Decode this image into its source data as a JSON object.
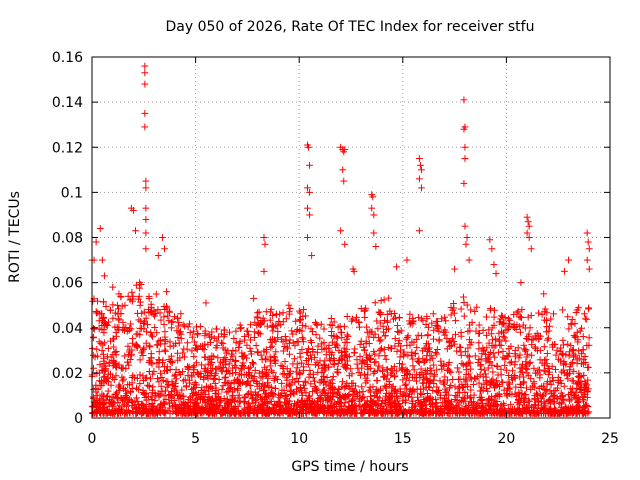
{
  "chart_data": {
    "type": "scatter",
    "title": "Day 050 of 2026, Rate Of TEC Index for receiver stfu",
    "xlabel": "GPS time / hours",
    "ylabel": "ROTI / TECUs",
    "xlim": [
      0,
      25
    ],
    "ylim": [
      0,
      0.16
    ],
    "xticks": [
      0,
      5,
      10,
      15,
      20,
      25
    ],
    "xtick_labels": [
      "0",
      "5",
      "10",
      "15",
      "20",
      "25"
    ],
    "yticks": [
      0,
      0.02,
      0.04,
      0.06,
      0.08,
      0.1,
      0.12,
      0.14,
      0.16
    ],
    "ytick_labels": [
      "0",
      "0.02",
      "0.04",
      "0.06",
      "0.08",
      "0.1",
      "0.12",
      "0.14",
      "0.16"
    ],
    "grid": true,
    "marker": "+",
    "color": "#ff0000",
    "spikes": [
      {
        "x": 0.0,
        "y": 0.07
      },
      {
        "x": 0.1,
        "y": 0.07
      },
      {
        "x": 0.2,
        "y": 0.078
      },
      {
        "x": 0.4,
        "y": 0.084
      },
      {
        "x": 0.5,
        "y": 0.07
      },
      {
        "x": 0.6,
        "y": 0.063
      },
      {
        "x": 1.0,
        "y": 0.058
      },
      {
        "x": 1.3,
        "y": 0.055
      },
      {
        "x": 1.9,
        "y": 0.093
      },
      {
        "x": 2.0,
        "y": 0.092
      },
      {
        "x": 2.1,
        "y": 0.083
      },
      {
        "x": 2.3,
        "y": 0.06
      },
      {
        "x": 2.55,
        "y": 0.156
      },
      {
        "x": 2.55,
        "y": 0.153
      },
      {
        "x": 2.55,
        "y": 0.148
      },
      {
        "x": 2.55,
        "y": 0.135
      },
      {
        "x": 2.55,
        "y": 0.129
      },
      {
        "x": 2.6,
        "y": 0.105
      },
      {
        "x": 2.6,
        "y": 0.102
      },
      {
        "x": 2.6,
        "y": 0.093
      },
      {
        "x": 2.6,
        "y": 0.088
      },
      {
        "x": 2.6,
        "y": 0.082
      },
      {
        "x": 2.6,
        "y": 0.075
      },
      {
        "x": 3.2,
        "y": 0.072
      },
      {
        "x": 3.4,
        "y": 0.08
      },
      {
        "x": 3.5,
        "y": 0.075
      },
      {
        "x": 3.6,
        "y": 0.056
      },
      {
        "x": 5.5,
        "y": 0.051
      },
      {
        "x": 7.8,
        "y": 0.053
      },
      {
        "x": 8.3,
        "y": 0.08
      },
      {
        "x": 8.35,
        "y": 0.077
      },
      {
        "x": 8.3,
        "y": 0.065
      },
      {
        "x": 9.5,
        "y": 0.05
      },
      {
        "x": 10.4,
        "y": 0.121
      },
      {
        "x": 10.45,
        "y": 0.12
      },
      {
        "x": 10.5,
        "y": 0.112
      },
      {
        "x": 10.4,
        "y": 0.102
      },
      {
        "x": 10.5,
        "y": 0.1
      },
      {
        "x": 10.4,
        "y": 0.093
      },
      {
        "x": 10.5,
        "y": 0.09
      },
      {
        "x": 10.4,
        "y": 0.08
      },
      {
        "x": 10.6,
        "y": 0.072
      },
      {
        "x": 12.0,
        "y": 0.12
      },
      {
        "x": 12.1,
        "y": 0.119
      },
      {
        "x": 12.2,
        "y": 0.119
      },
      {
        "x": 12.15,
        "y": 0.118
      },
      {
        "x": 12.1,
        "y": 0.11
      },
      {
        "x": 12.15,
        "y": 0.105
      },
      {
        "x": 12.0,
        "y": 0.083
      },
      {
        "x": 12.2,
        "y": 0.077
      },
      {
        "x": 12.6,
        "y": 0.066
      },
      {
        "x": 12.65,
        "y": 0.065
      },
      {
        "x": 13.5,
        "y": 0.099
      },
      {
        "x": 13.55,
        "y": 0.098
      },
      {
        "x": 13.5,
        "y": 0.093
      },
      {
        "x": 13.6,
        "y": 0.09
      },
      {
        "x": 13.6,
        "y": 0.082
      },
      {
        "x": 13.7,
        "y": 0.076
      },
      {
        "x": 14.7,
        "y": 0.067
      },
      {
        "x": 15.2,
        "y": 0.07
      },
      {
        "x": 15.8,
        "y": 0.115
      },
      {
        "x": 15.85,
        "y": 0.112
      },
      {
        "x": 15.9,
        "y": 0.11
      },
      {
        "x": 15.8,
        "y": 0.106
      },
      {
        "x": 15.9,
        "y": 0.102
      },
      {
        "x": 15.8,
        "y": 0.083
      },
      {
        "x": 17.5,
        "y": 0.066
      },
      {
        "x": 17.95,
        "y": 0.141
      },
      {
        "x": 18.0,
        "y": 0.129
      },
      {
        "x": 17.95,
        "y": 0.128
      },
      {
        "x": 18.0,
        "y": 0.12
      },
      {
        "x": 18.0,
        "y": 0.115
      },
      {
        "x": 17.95,
        "y": 0.104
      },
      {
        "x": 18.0,
        "y": 0.085
      },
      {
        "x": 18.1,
        "y": 0.08
      },
      {
        "x": 18.05,
        "y": 0.077
      },
      {
        "x": 18.2,
        "y": 0.07
      },
      {
        "x": 19.2,
        "y": 0.079
      },
      {
        "x": 19.3,
        "y": 0.075
      },
      {
        "x": 19.4,
        "y": 0.068
      },
      {
        "x": 19.5,
        "y": 0.064
      },
      {
        "x": 20.7,
        "y": 0.06
      },
      {
        "x": 21.0,
        "y": 0.089
      },
      {
        "x": 21.05,
        "y": 0.087
      },
      {
        "x": 21.1,
        "y": 0.085
      },
      {
        "x": 21.0,
        "y": 0.082
      },
      {
        "x": 21.1,
        "y": 0.08
      },
      {
        "x": 21.2,
        "y": 0.075
      },
      {
        "x": 21.8,
        "y": 0.055
      },
      {
        "x": 22.8,
        "y": 0.065
      },
      {
        "x": 23.0,
        "y": 0.07
      },
      {
        "x": 23.9,
        "y": 0.082
      },
      {
        "x": 23.95,
        "y": 0.078
      },
      {
        "x": 24.0,
        "y": 0.075
      },
      {
        "x": 23.9,
        "y": 0.07
      },
      {
        "x": 24.0,
        "y": 0.066
      }
    ],
    "envelope": [
      {
        "x": 0,
        "y": 0.055
      },
      {
        "x": 1,
        "y": 0.052
      },
      {
        "x": 2,
        "y": 0.06
      },
      {
        "x": 3,
        "y": 0.058
      },
      {
        "x": 4,
        "y": 0.048
      },
      {
        "x": 5,
        "y": 0.042
      },
      {
        "x": 6,
        "y": 0.04
      },
      {
        "x": 7,
        "y": 0.04
      },
      {
        "x": 8,
        "y": 0.048
      },
      {
        "x": 9,
        "y": 0.05
      },
      {
        "x": 10,
        "y": 0.05
      },
      {
        "x": 11,
        "y": 0.042
      },
      {
        "x": 12,
        "y": 0.046
      },
      {
        "x": 13,
        "y": 0.05
      },
      {
        "x": 14,
        "y": 0.055
      },
      {
        "x": 15,
        "y": 0.05
      },
      {
        "x": 16,
        "y": 0.045
      },
      {
        "x": 17,
        "y": 0.05
      },
      {
        "x": 18,
        "y": 0.055
      },
      {
        "x": 19,
        "y": 0.05
      },
      {
        "x": 20,
        "y": 0.045
      },
      {
        "x": 21,
        "y": 0.05
      },
      {
        "x": 22,
        "y": 0.05
      },
      {
        "x": 23,
        "y": 0.048
      },
      {
        "x": 24,
        "y": 0.05
      }
    ],
    "dense_band": {
      "x_range": [
        0,
        24
      ],
      "y_min": 0.002,
      "y_max": 0.05
    }
  }
}
